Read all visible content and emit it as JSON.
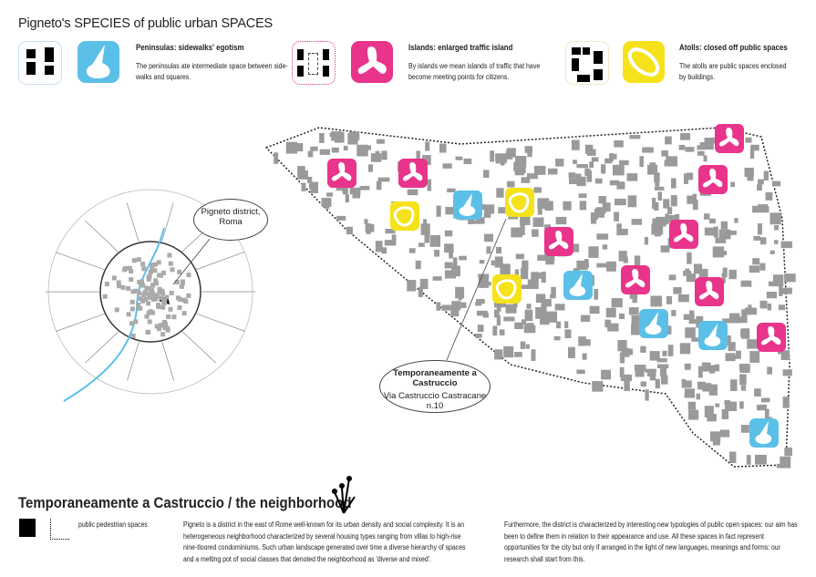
{
  "title": "Pigneto's SPECIES of public urban SPACES",
  "colors": {
    "peninsula": "#5bc0e8",
    "island": "#e8348a",
    "atoll": "#f5e21a",
    "block": "#9a9a9a",
    "black": "#000"
  },
  "legend": [
    {
      "type": "peninsula",
      "heading": "Peninsulas: sidewalks' egotism",
      "text": "The peninsulas ate intermediate space between side-walks and squares."
    },
    {
      "type": "island",
      "heading": "Islands: enlarged traffic island",
      "text": "By islands we mean islands of traffic that have become meeting points for citizens."
    },
    {
      "type": "atoll",
      "heading": "Atolls: closed off public spaces",
      "text": "The atolls are public spaces enclosed by buildings."
    }
  ],
  "callouts": {
    "district": "Pigneto district, Roma",
    "venue_title": "Temporaneamente a Castruccio",
    "venue_address": "Via Castruccio Castracane n.10"
  },
  "map_markers": [
    "island",
    "island",
    "island",
    "island",
    "island",
    "island",
    "island",
    "island",
    "island",
    "peninsula",
    "peninsula",
    "peninsula",
    "peninsula",
    "peninsula",
    "atoll",
    "atoll",
    "atoll"
  ],
  "bottom": {
    "title": "Temporaneamente a Castruccio / the neighborhood",
    "legend_label": "public pedestrian spaces",
    "text1": "Pigneto is a district in the east of Rome well-known for its urban density and social complexity. It is an heterogeneous neighborhood characterized by several housing types ranging from villas to high-rise nine-tloored condominiums. Such urban landscape generated over time a diverse hierarchy of spaces and a melting pot of social classes that denoted the neighborhood as 'diverse and mixed'.",
    "text2": "Furthermore, the district is characterized by interesting new typologies of public open spaces: our aim has been to define them in relation to their appearance and use. All these spaces in fact represent opportunities for the city but only if arranged in the light of new languages, meanings and forms: our research shall start from this."
  }
}
